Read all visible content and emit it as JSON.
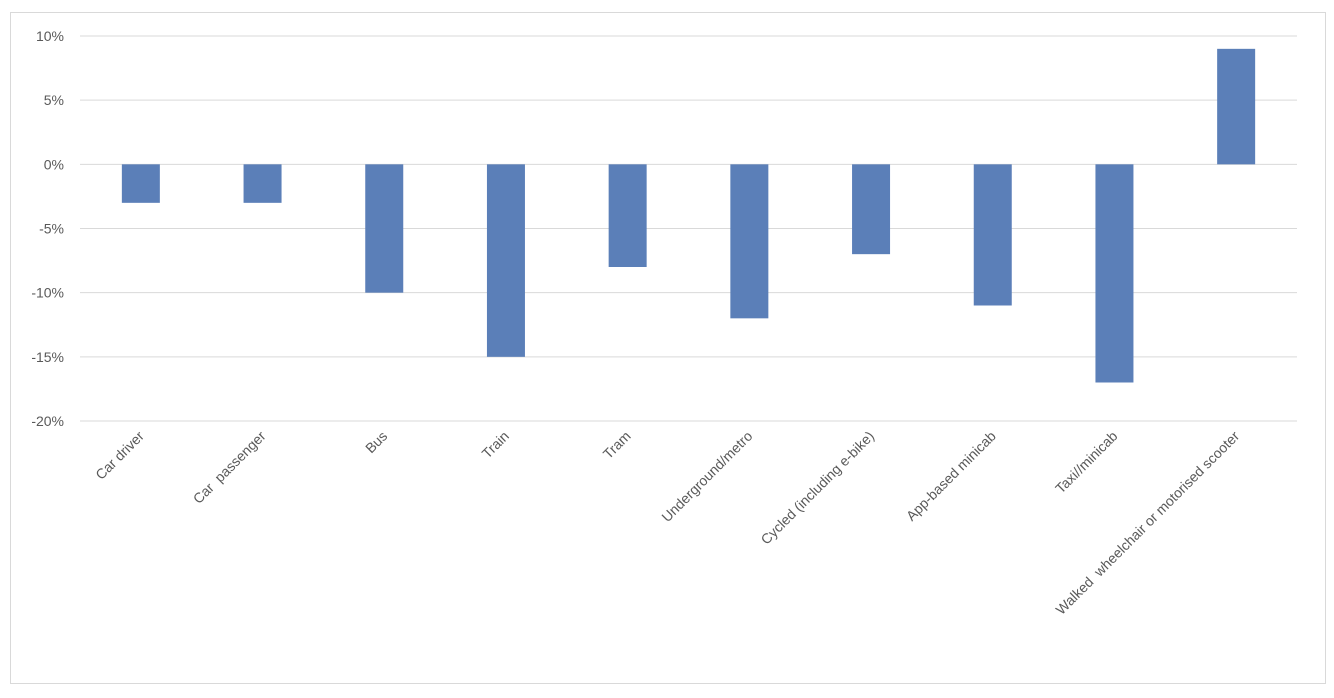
{
  "chart_data": {
    "type": "bar",
    "title": "",
    "xlabel": "",
    "ylabel": "",
    "categories": [
      "Car driver",
      "Car  passenger",
      "Bus",
      "Train",
      "Tram",
      "Underground/metro",
      "Cycled (including e-bike)",
      "App-based minicab",
      "Taxi//minicab",
      "Walked  wheelchair or motorised scooter"
    ],
    "values": [
      -3,
      -3,
      -10,
      -15,
      -8,
      -12,
      -7,
      -11,
      -17,
      9
    ],
    "value_unit": "%",
    "ylim": [
      -20,
      10
    ],
    "yticks": [
      10,
      5,
      0,
      -5,
      -10,
      -15,
      -20
    ],
    "ytick_labels": [
      "10%",
      "5%",
      "0%",
      "-5%",
      "-10%",
      "-15%",
      "-20%"
    ],
    "grid": true,
    "legend": "none",
    "bar_color": "#5b7fb8"
  }
}
